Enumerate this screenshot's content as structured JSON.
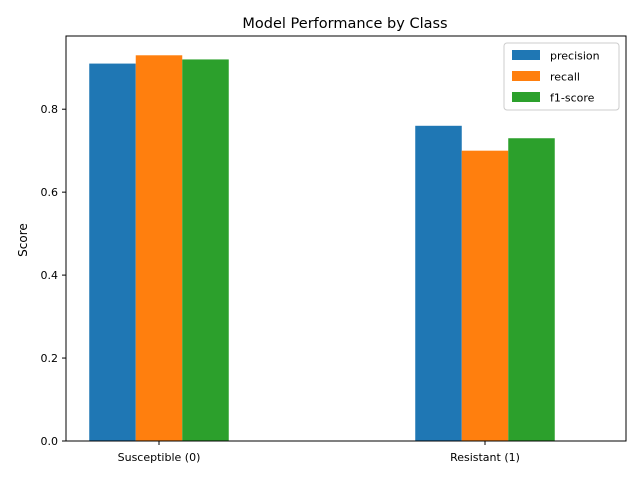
{
  "chart_data": {
    "type": "bar",
    "title": "Model Performance by Class",
    "xlabel": "",
    "ylabel": "Score",
    "categories": [
      "Susceptible (0)",
      "Resistant (1)"
    ],
    "series": [
      {
        "name": "precision",
        "values": [
          0.91,
          0.76
        ],
        "color": "#1f77b4"
      },
      {
        "name": "recall",
        "values": [
          0.93,
          0.7
        ],
        "color": "#ff7f0e"
      },
      {
        "name": "f1-score",
        "values": [
          0.92,
          0.73
        ],
        "color": "#2ca02c"
      }
    ],
    "ylim": [
      0,
      0.9765
    ],
    "yticks": [
      0.0,
      0.2,
      0.4,
      0.6,
      0.8
    ],
    "ytick_labels": [
      "0.0",
      "0.2",
      "0.4",
      "0.6",
      "0.8"
    ],
    "grid": false,
    "legend_position": "top-right"
  }
}
